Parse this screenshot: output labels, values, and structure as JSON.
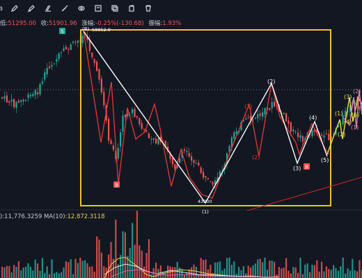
{
  "toolbar": {
    "left_text": "a",
    "icons": [
      "pencil-icon",
      "highlighter-icon",
      "eraser-icon",
      "ruler-icon",
      "eye-icon",
      "lock-icon",
      "layers-icon",
      "copy-icon",
      "trash-icon"
    ]
  },
  "ohlc": {
    "low_label": "低:",
    "low_value": "51295.00",
    "close_label": "收:",
    "close_value": "51901.96",
    "change_label": "涨幅:",
    "change_value": "-0.25%(-130.68)",
    "amplitude_label": "振幅:",
    "amplitude_value": "1.93%"
  },
  "volume": {
    "vol_value": "):11,776.3259",
    "ma_label": "MA(10):",
    "ma_value": "12,872.3118"
  },
  "annotations": {
    "high_price": "58852.0",
    "low_price": "43000",
    "wave_b_top": "(B)",
    "wave_1_bottom": "(1)",
    "wave_2_peak": "(2)",
    "wave_2_red": "(2)",
    "wave_1_red": "(1)",
    "wave_3": "(3)",
    "wave_4": "(4)",
    "wave_5": "(5)",
    "right_1": "(1)",
    "right_2": "(2)",
    "right_3": "(3)",
    "right_4": "(4)",
    "right_5": "(5)",
    "right_2b": "(2)",
    "right_1b": "(1)"
  },
  "colors": {
    "up": "#26a69a",
    "down": "#ef5350",
    "box": "#f2c12e",
    "wave_white": "#ffffff",
    "wave_red": "#e53935",
    "wave_yellow": "#e8e04a",
    "pink": "#e57fb5",
    "trendline": "#c62828",
    "dotted": "#9aa0aa"
  }
}
